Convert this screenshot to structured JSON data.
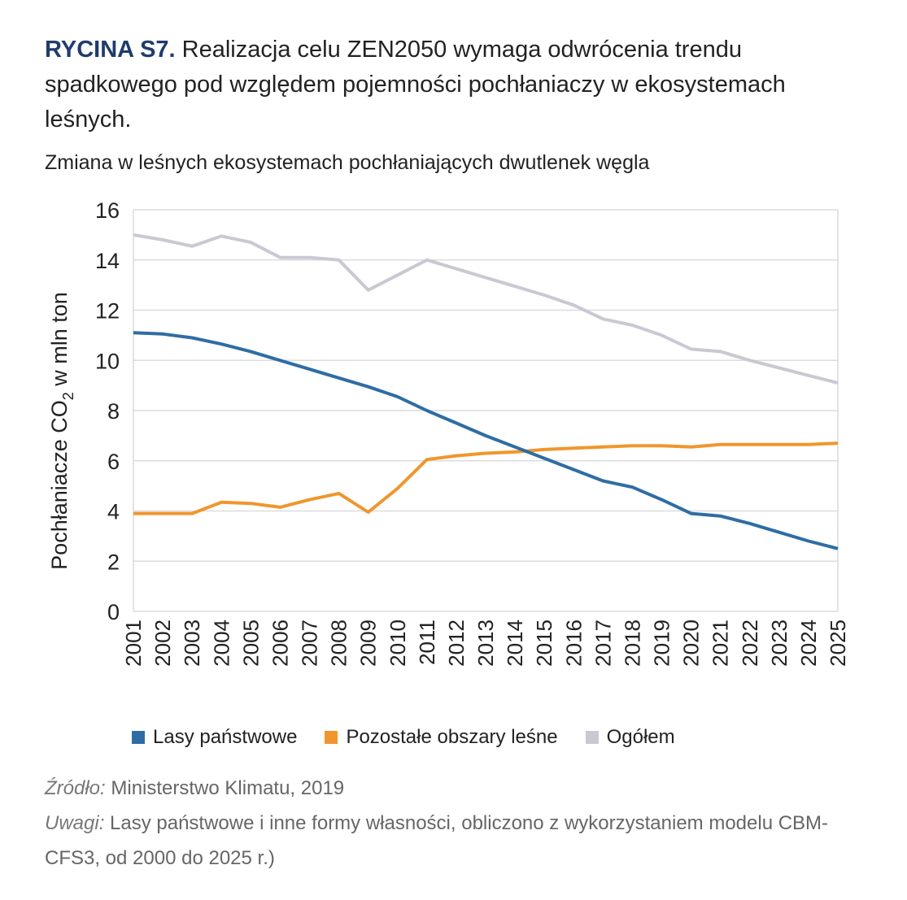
{
  "title": {
    "lead": "RYCINA S7.",
    "text": " Realizacja celu ZEN2050 wymaga odwrócenia trendu spadkowego pod względem pojemności pochłaniaczy w ekosystemach leśnych."
  },
  "subtitle": "Zmiana w leśnych ekosystemach pochłaniających dwutlenek węgla",
  "source": {
    "label": "Źródło:",
    "text": " Ministerstwo Klimatu, 2019"
  },
  "notes": {
    "label": "Uwagi:",
    "text": " Lasy państwowe i inne formy własności, obliczono z wykorzystaniem modelu CBM-CFS3, od 2000 do 2025 r.)"
  },
  "chart_data": {
    "type": "line",
    "title": "Zmiana w leśnych ekosystemach pochłaniających dwutlenek węgla",
    "ylabel": "Pochłaniacze CO2 w mln ton",
    "ylabel_parts": [
      "Pochłaniacze CO",
      "2",
      " w mln ton"
    ],
    "xlabel": "",
    "ylim": [
      0,
      16
    ],
    "yticks": [
      "0",
      "2",
      "4",
      "6",
      "8",
      "10",
      "12",
      "14",
      "16"
    ],
    "grid": true,
    "legend_position": "bottom",
    "x": [
      "2001",
      "2002",
      "2003",
      "2004",
      "2005",
      "2006",
      "2007",
      "2008",
      "2009",
      "2010",
      "2011",
      "2012",
      "2013",
      "2014",
      "2015",
      "2016",
      "2017",
      "2018",
      "2019",
      "2020",
      "2021",
      "2022",
      "2023",
      "2024",
      "2025"
    ],
    "series": [
      {
        "name": "Lasy państwowe",
        "color": "#2e6da4",
        "values": [
          11.1,
          11.05,
          10.9,
          10.65,
          10.35,
          10.0,
          9.65,
          9.3,
          8.95,
          8.55,
          8.0,
          7.5,
          7.0,
          6.55,
          6.1,
          5.65,
          5.2,
          4.95,
          4.45,
          3.9,
          3.8,
          3.5,
          3.15,
          2.8,
          2.5
        ]
      },
      {
        "name": "Pozostałe obszary leśne",
        "color": "#f0962d",
        "values": [
          3.9,
          3.9,
          3.9,
          4.35,
          4.3,
          4.15,
          4.45,
          4.7,
          3.95,
          4.9,
          6.05,
          6.2,
          6.3,
          6.35,
          6.45,
          6.5,
          6.55,
          6.6,
          6.6,
          6.55,
          6.65,
          6.65,
          6.65,
          6.65,
          6.7
        ]
      },
      {
        "name": "Ogółem",
        "color": "#c9c9d4",
        "values": [
          15.0,
          14.8,
          14.55,
          14.95,
          14.7,
          14.1,
          14.1,
          14.0,
          12.8,
          13.4,
          14.0,
          13.65,
          13.3,
          12.95,
          12.6,
          12.2,
          11.65,
          11.4,
          11.0,
          10.45,
          10.35,
          10.0,
          9.7,
          9.4,
          9.1
        ]
      }
    ]
  }
}
